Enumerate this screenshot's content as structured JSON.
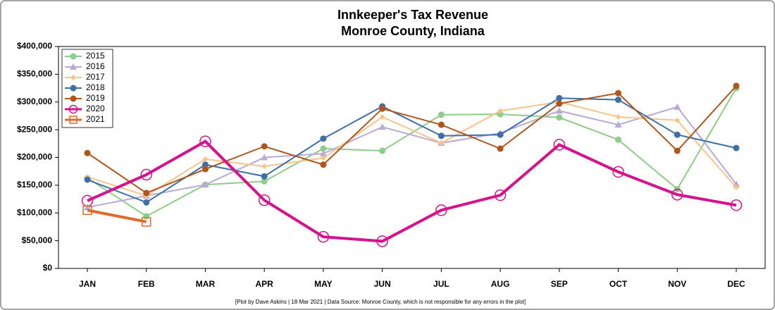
{
  "chart_data": {
    "type": "line",
    "title": "Innkeeper's Tax Revenue",
    "subtitle": "Monroe County, Indiana",
    "footnote": "[Plot by Dave Askins | 18 Mar 2021 | Data Source: Monroe County, which is not responsible for any errors in the plot]",
    "categories": [
      "JAN",
      "FEB",
      "MAR",
      "APR",
      "MAY",
      "JUN",
      "JUL",
      "AUG",
      "SEP",
      "OCT",
      "NOV",
      "DEC"
    ],
    "ylim": [
      0,
      400000
    ],
    "yticks": [
      {
        "value": 0,
        "label": "$0"
      },
      {
        "value": 50000,
        "label": "$50,000"
      },
      {
        "value": 100000,
        "label": "$100,000"
      },
      {
        "value": 150000,
        "label": "$150,000"
      },
      {
        "value": 200000,
        "label": "$200,000"
      },
      {
        "value": 250000,
        "label": "$250,000"
      },
      {
        "value": 300000,
        "label": "$300,000"
      },
      {
        "value": 350000,
        "label": "$350,000"
      },
      {
        "value": 400000,
        "label": "$400,000"
      }
    ],
    "legend": "upper left",
    "series": [
      {
        "name": "2015",
        "color": "#8fcc8a",
        "marker": "circle",
        "values": [
          163000,
          94000,
          151000,
          157000,
          216000,
          212000,
          277000,
          278000,
          272000,
          232000,
          143000,
          325000
        ]
      },
      {
        "name": "2016",
        "color": "#b9a9d6",
        "marker": "triangle",
        "values": [
          110000,
          131000,
          151000,
          200000,
          207000,
          255000,
          226000,
          244000,
          284000,
          259000,
          291000,
          152000
        ]
      },
      {
        "name": "2017",
        "color": "#f7c48a",
        "marker": "diamond",
        "values": [
          165000,
          131000,
          197000,
          184000,
          199000,
          273000,
          226000,
          284000,
          300000,
          273000,
          267000,
          146000
        ]
      },
      {
        "name": "2018",
        "color": "#3e6fa8",
        "marker": "circle",
        "values": [
          160000,
          119000,
          187000,
          166000,
          234000,
          292000,
          239000,
          241000,
          307000,
          304000,
          241000,
          217000
        ]
      },
      {
        "name": "2019",
        "color": "#b0561c",
        "marker": "circle",
        "values": [
          208000,
          136000,
          179000,
          220000,
          187000,
          288000,
          259000,
          216000,
          297000,
          316000,
          212000,
          329000
        ]
      },
      {
        "name": "2020",
        "color": "#d6138c",
        "marker": "open-circle",
        "values": [
          122000,
          169000,
          229000,
          123000,
          57000,
          49000,
          105000,
          132000,
          223000,
          174000,
          133000,
          114000
        ]
      },
      {
        "name": "2021",
        "color": "#e06a2c",
        "marker": "open-square",
        "values": [
          105000,
          84000,
          null,
          null,
          null,
          null,
          null,
          null,
          null,
          null,
          null,
          null
        ]
      }
    ]
  }
}
